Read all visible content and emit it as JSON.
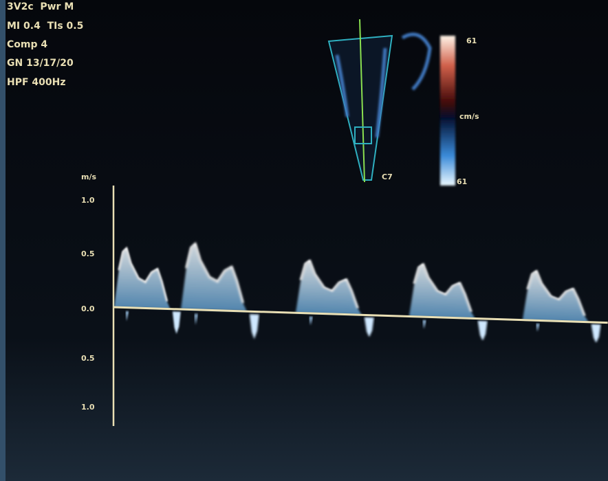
{
  "status": {
    "lines": [
      "3V2c  Pwr M",
      "MI 0.4  TIs 0.5",
      "Comp 4",
      "GN 13/17/20",
      "HPF 400Hz"
    ]
  },
  "velocity_scale": {
    "unit": "m/s",
    "labels": [
      "1.0",
      "0.5",
      "0.0",
      "0.5",
      "1.0"
    ]
  },
  "color_scale": {
    "top": "61",
    "unit": "cm/s",
    "bottom": "61"
  },
  "probe_label": "C7"
}
